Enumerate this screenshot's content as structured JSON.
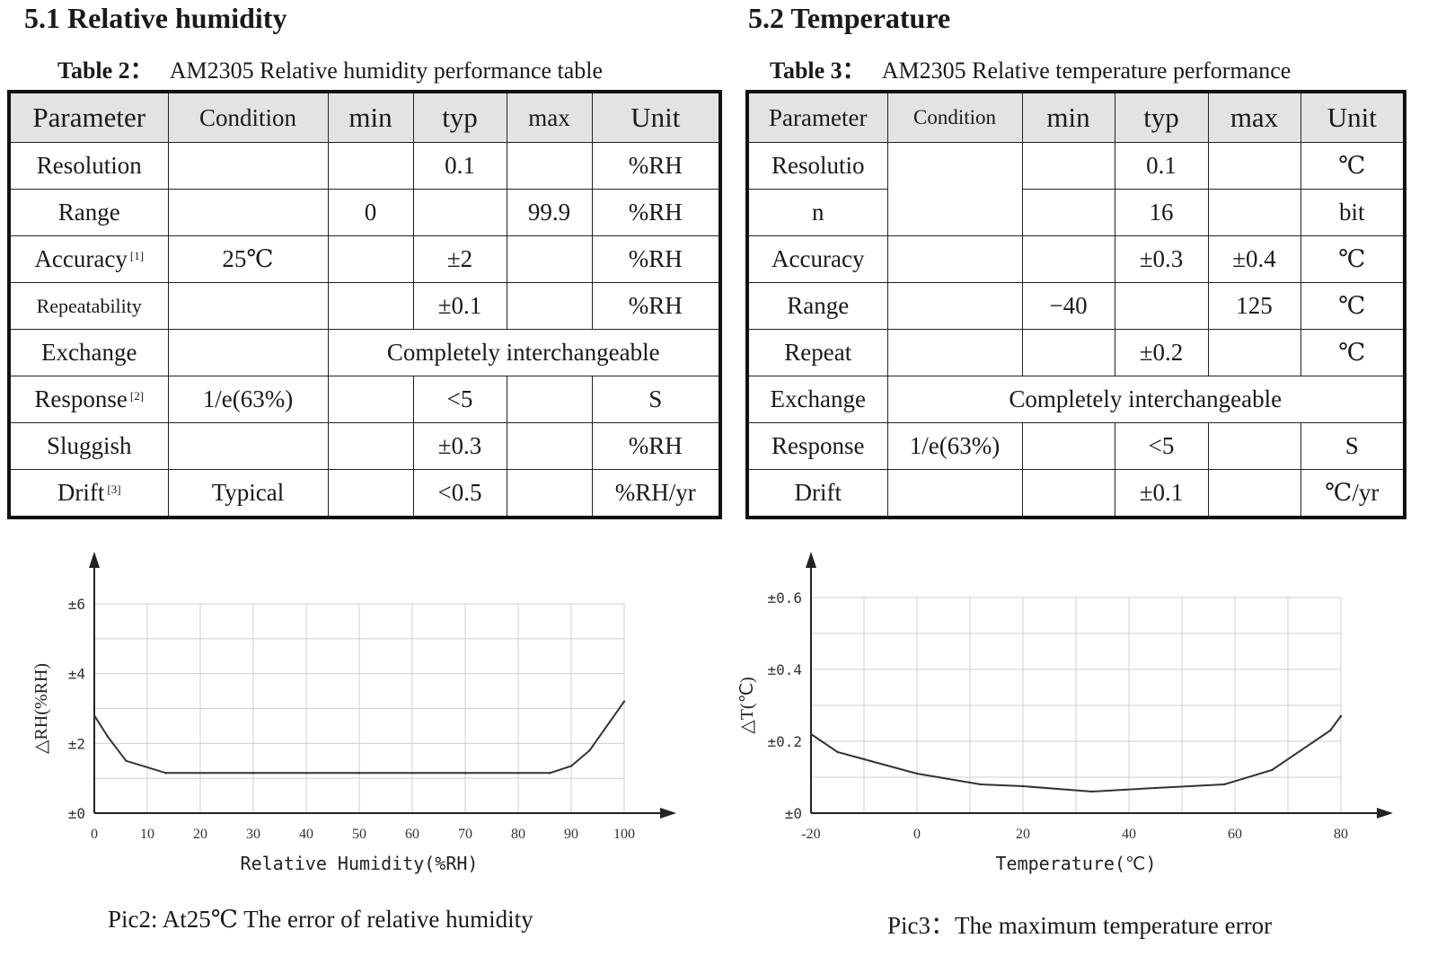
{
  "left": {
    "heading": "5.1 Relative humidity",
    "table_label": "Table 2：",
    "table_title": "AM2305 Relative humidity performance table",
    "columns": [
      "Parameter",
      "Condition",
      "min",
      "typ",
      "max",
      "Unit"
    ],
    "rows": [
      {
        "parameter": "Resolution",
        "note": "",
        "condition": "",
        "min": "",
        "typ": "0.1",
        "max": "",
        "unit": "%RH"
      },
      {
        "parameter": "Range",
        "note": "",
        "condition": "",
        "min": "0",
        "typ": "",
        "max": "99.9",
        "unit": "%RH"
      },
      {
        "parameter": "Accuracy",
        "note": "[1]",
        "condition": "25℃",
        "min": "",
        "typ": "±2",
        "max": "",
        "unit": "%RH"
      },
      {
        "parameter": "Repeatability",
        "note": "",
        "condition": "",
        "min": "",
        "typ": "±0.1",
        "max": "",
        "unit": "%RH"
      },
      {
        "parameter": "Exchange",
        "note": "",
        "condition": "",
        "span_text": "Completely interchangeable"
      },
      {
        "parameter": "Response",
        "note": "[2]",
        "condition": "1/e(63%)",
        "min": "",
        "typ": "<5",
        "max": "",
        "unit": "S"
      },
      {
        "parameter": "Sluggish",
        "note": "",
        "condition": "",
        "min": "",
        "typ": "±0.3",
        "max": "",
        "unit": "%RH"
      },
      {
        "parameter": "Drift",
        "note": "[3]",
        "condition": "Typical",
        "min": "",
        "typ": "<0.5",
        "max": "",
        "unit": "%RH/yr"
      }
    ],
    "figure_caption": "Pic2: At25℃  The error of relative humidity"
  },
  "right": {
    "heading": "5.2 Temperature",
    "table_label": "Table 3：",
    "table_title": "AM2305 Relative temperature performance",
    "columns": [
      "Parameter",
      "Condition",
      "min",
      "typ",
      "max",
      "Unit"
    ],
    "resolution_label_1": "Resolutio",
    "resolution_label_2": "n",
    "rows": [
      {
        "parameter": "",
        "condition": "",
        "min": "",
        "typ": "0.1",
        "max": "",
        "unit": "℃"
      },
      {
        "parameter": "",
        "condition": "",
        "min": "",
        "typ": "16",
        "max": "",
        "unit": "bit"
      },
      {
        "parameter": "Accuracy",
        "condition": "",
        "min": "",
        "typ": "±0.3",
        "max": "±0.4",
        "unit": "℃"
      },
      {
        "parameter": "Range",
        "condition": "",
        "min": "−40",
        "typ": "",
        "max": "125",
        "unit": "℃"
      },
      {
        "parameter": "Repeat",
        "condition": "",
        "min": "",
        "typ": "±0.2",
        "max": "",
        "unit": "℃"
      },
      {
        "parameter": "Exchange",
        "condition": "",
        "span_text": "Completely interchangeable"
      },
      {
        "parameter": "Response",
        "condition": "1/e(63%)",
        "min": "",
        "typ": "<5",
        "max": "",
        "unit": "S"
      },
      {
        "parameter": "Drift",
        "condition": "",
        "min": "",
        "typ": "±0.1",
        "max": "",
        "unit": "℃/yr"
      }
    ],
    "figure_caption": "Pic3：The maximum temperature error"
  },
  "chart_data": [
    {
      "type": "line",
      "title": "",
      "xlabel": "Relative Humidity(%RH)",
      "ylabel": "△RH(%RH)",
      "xlim": [
        0,
        100
      ],
      "ylim": [
        0,
        6
      ],
      "x_ticks": [
        "0",
        "10",
        "20",
        "30",
        "40",
        "50",
        "60",
        "70",
        "80",
        "90",
        "100"
      ],
      "y_ticks": [
        "±0",
        "±2",
        "±4",
        "±6"
      ],
      "grid": true,
      "x": [
        0,
        2.5,
        6,
        13.5,
        30,
        50,
        70,
        86,
        90,
        93.5,
        100
      ],
      "y": [
        2.8,
        2.2,
        1.5,
        1.15,
        1.15,
        1.15,
        1.15,
        1.15,
        1.35,
        1.8,
        3.2
      ]
    },
    {
      "type": "line",
      "title": "",
      "xlabel": "Temperature(℃)",
      "ylabel": "△T(℃)",
      "xlim": [
        -20,
        80
      ],
      "ylim": [
        0,
        0.6
      ],
      "x_ticks": [
        "-20",
        "0",
        "20",
        "40",
        "60",
        "80"
      ],
      "y_ticks": [
        "±0",
        "±0.2",
        "±0.4",
        "±0.6"
      ],
      "grid": true,
      "x": [
        -20,
        -15,
        -10,
        0,
        12,
        20,
        33,
        45,
        58,
        67,
        78,
        80
      ],
      "y": [
        0.22,
        0.17,
        0.15,
        0.11,
        0.08,
        0.075,
        0.06,
        0.07,
        0.08,
        0.12,
        0.23,
        0.27
      ]
    }
  ]
}
